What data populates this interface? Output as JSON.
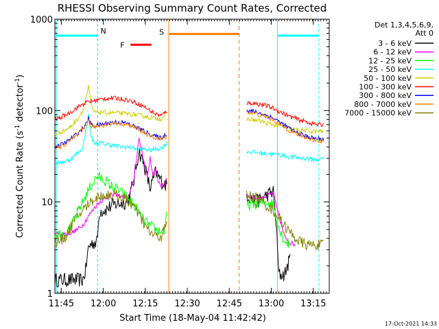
{
  "chart_data": {
    "type": "line",
    "title": "RHESSI Observing Summary Count Rates, Corrected",
    "xlabel": "Start Time (18-May-04 11:42:42)",
    "ylabel_main": "Corrected Count Rate (s",
    "ylabel_sup1": "-1",
    "ylabel_mid": " detector",
    "ylabel_sup2": "-1",
    "ylabel_end": ")",
    "footer_date": "17-Oct-2021 14:33",
    "x_unit": "minutes since 11:42:42",
    "xlim": [
      0,
      98
    ],
    "ylim": [
      1,
      1000
    ],
    "yscale": "log",
    "grid": false,
    "legend_position": "top-right",
    "legend_header": [
      "Det 1,3,4,5,6,9,",
      "Att 0"
    ],
    "x_ticks": [
      {
        "x": 2.3,
        "label": "11:45"
      },
      {
        "x": 17.3,
        "label": "12:00"
      },
      {
        "x": 32.3,
        "label": "12:15"
      },
      {
        "x": 47.3,
        "label": "12:30"
      },
      {
        "x": 62.3,
        "label": "12:45"
      },
      {
        "x": 77.3,
        "label": "13:00"
      },
      {
        "x": 92.3,
        "label": "13:15"
      }
    ],
    "y_ticks": [
      {
        "y": 1,
        "label": "1"
      },
      {
        "y": 10,
        "label": "10"
      },
      {
        "y": 100,
        "label": "100"
      },
      {
        "y": 1000,
        "label": "1000"
      }
    ],
    "markers": {
      "N_label": "N",
      "S_label": "S",
      "F_label": "F",
      "night_before": [
        0,
        15.3
      ],
      "night_after": [
        79.5,
        94.3
      ],
      "night_level": 660,
      "saa": [
        40.7,
        65.8
      ],
      "saa_level": 690,
      "flare": [
        27.0,
        34.5
      ],
      "flare_level": 525,
      "night_color": "#00ffff",
      "saa_color": "#ff8000",
      "flare_color": "#ff0000"
    },
    "series": [
      {
        "name": "3 - 6 keV",
        "color": "#000000",
        "segments": [
          {
            "x": [
              0,
              2,
              4,
              6,
              8,
              10,
              11,
              12,
              13,
              14,
              15,
              16,
              18,
              20,
              22,
              24,
              26,
              28,
              30,
              32,
              34,
              36,
              38,
              39,
              40
            ],
            "y": [
              1.4,
              1.4,
              1.4,
              1.4,
              1.4,
              1.4,
              1.8,
              3.2,
              3.5,
              3.6,
              3.6,
              8.0,
              8.2,
              9.0,
              9.5,
              9.8,
              10.0,
              16,
              36,
              25,
              14,
              21,
              17,
              16,
              15
            ]
          },
          {
            "x": [
              68.5,
              70,
              72,
              74,
              76,
              78,
              79,
              80,
              82,
              84
            ],
            "y": [
              12,
              11,
              10,
              11,
              12,
              13,
              6,
              1.6,
              1.6,
              2.4
            ]
          }
        ]
      },
      {
        "name": "6 - 12 keV",
        "color": "#ff00ff",
        "segments": [
          {
            "x": [
              0,
              2,
              4,
              6,
              8,
              10,
              12,
              14,
              16,
              18,
              20,
              22,
              24,
              26,
              28,
              30,
              31,
              32,
              33,
              34,
              35,
              36,
              37,
              38,
              39,
              40
            ],
            "y": [
              4.5,
              4.5,
              4.5,
              4.6,
              5.0,
              5.6,
              7.0,
              8.6,
              10,
              11,
              11.8,
              12,
              11.5,
              11,
              16,
              48,
              38,
              26,
              19,
              30,
              20,
              22,
              17,
              15,
              15,
              19
            ]
          },
          {
            "x": [
              68.5,
              70,
              72,
              74,
              76,
              78,
              80,
              82,
              84,
              86
            ],
            "y": [
              12,
              11.5,
              11,
              11,
              11.8,
              12.5,
              7,
              4.2,
              3.6,
              3.4
            ]
          }
        ]
      },
      {
        "name": "12 - 25 keV",
        "color": "#00ff00",
        "segments": [
          {
            "x": [
              0,
              2,
              4,
              6,
              8,
              10,
              12,
              14,
              15,
              16,
              18,
              20,
              22,
              24,
              26,
              28,
              30,
              32,
              34,
              36,
              38,
              39,
              40
            ],
            "y": [
              4.5,
              4.5,
              4.5,
              5.5,
              7.5,
              10,
              13.5,
              17,
              19,
              18.5,
              17,
              15,
              14,
              12.5,
              11,
              9.5,
              7.5,
              6.2,
              5.5,
              5.0,
              4.8,
              4.8,
              7
            ]
          },
          {
            "x": [
              68.5,
              70,
              72,
              74,
              76,
              78,
              80,
              82,
              84
            ],
            "y": [
              9,
              9.5,
              9.5,
              9.8,
              10,
              9.5,
              5.2,
              3.8,
              3.4
            ]
          }
        ]
      },
      {
        "name": "25 - 50 keV",
        "color": "#00ffff",
        "segments": [
          {
            "x": [
              0,
              2,
              4,
              6,
              8,
              10,
              11,
              12,
              13,
              14,
              15,
              16,
              18,
              20,
              22,
              24,
              26,
              28,
              30,
              32,
              34,
              36,
              38,
              40
            ],
            "y": [
              26,
              27,
              28,
              30,
              34,
              39,
              60,
              88,
              52,
              44,
              44,
              44,
              43,
              42,
              41,
              40,
              40,
              39,
              38,
              38,
              37,
              38,
              39,
              44
            ]
          },
          {
            "x": [
              68.5,
              70,
              72,
              74,
              76,
              78,
              80,
              82,
              84,
              86,
              88,
              90,
              92,
              94,
              96
            ],
            "y": [
              36,
              35,
              35,
              34,
              34,
              33,
              33,
              32,
              31,
              31,
              30,
              30,
              29,
              29,
              30
            ]
          }
        ]
      },
      {
        "name": "50 - 100 keV",
        "color": "#cccc00",
        "segments": [
          {
            "x": [
              0,
              2,
              4,
              6,
              8,
              10,
              11,
              12,
              13,
              14,
              15,
              16,
              18,
              20,
              22,
              24,
              26,
              28,
              30,
              32,
              34,
              36,
              38,
              40
            ],
            "y": [
              55,
              58,
              62,
              68,
              80,
              100,
              135,
              180,
              115,
              96,
              96,
              96,
              95,
              95,
              94,
              93,
              92,
              91,
              89,
              87,
              84,
              83,
              81,
              92
            ]
          },
          {
            "x": [
              68.5,
              70,
              72,
              74,
              76,
              78,
              80,
              82,
              84,
              86,
              88,
              90,
              92,
              94,
              96
            ],
            "y": [
              80,
              80,
              78,
              76,
              72,
              70,
              68,
              66,
              63,
              62,
              61,
              60,
              59,
              59,
              59
            ]
          }
        ]
      },
      {
        "name": "100 - 300 keV",
        "color": "#ff0000",
        "segments": [
          {
            "x": [
              0,
              2,
              4,
              6,
              8,
              10,
              12,
              14,
              16,
              18,
              20,
              22,
              24,
              26,
              28,
              30,
              32,
              34,
              36,
              38,
              40
            ],
            "y": [
              80,
              84,
              90,
              98,
              108,
              118,
              125,
              128,
              132,
              135,
              137,
              136,
              134,
              130,
              125,
              118,
              110,
              100,
              92,
              88,
              98
            ]
          },
          {
            "x": [
              68.5,
              70,
              72,
              74,
              76,
              78,
              80,
              82,
              84,
              86,
              88,
              90,
              92,
              94,
              96
            ],
            "y": [
              120,
              121,
              119,
              116,
              112,
              106,
              98,
              92,
              86,
              82,
              78,
              75,
              72,
              70,
              70
            ]
          }
        ]
      },
      {
        "name": "300 - 800 keV",
        "color": "#0000ff",
        "segments": [
          {
            "x": [
              0,
              2,
              4,
              6,
              8,
              10,
              11,
              12,
              13,
              14,
              16,
              18,
              20,
              22,
              24,
              26,
              28,
              30,
              32,
              34,
              36,
              38,
              40
            ],
            "y": [
              40,
              42,
              45,
              50,
              56,
              64,
              70,
              82,
              70,
              68,
              70,
              72,
              74,
              75,
              74,
              72,
              68,
              64,
              59,
              55,
              52,
              50,
              56
            ]
          },
          {
            "x": [
              68.5,
              70,
              72,
              74,
              76,
              78,
              80,
              82,
              84,
              86,
              88,
              90,
              92,
              94,
              96
            ],
            "y": [
              100,
              99,
              96,
              92,
              88,
              83,
              76,
              69,
              63,
              58,
              55,
              52,
              50,
              49,
              49
            ]
          }
        ]
      },
      {
        "name": "800 - 7000 keV",
        "color": "#ff8000",
        "segments": [
          {
            "x": [
              0,
              2,
              4,
              6,
              8,
              10,
              11,
              12,
              13,
              14,
              16,
              18,
              20,
              22,
              24,
              26,
              28,
              30,
              32,
              34,
              36,
              38,
              40
            ],
            "y": [
              38,
              40,
              43,
              48,
              54,
              62,
              68,
              80,
              68,
              66,
              68,
              70,
              72,
              73,
              72,
              70,
              66,
              62,
              57,
              53,
              50,
              48,
              53
            ]
          },
          {
            "x": [
              68.5,
              70,
              72,
              74,
              76,
              78,
              80,
              82,
              84,
              86,
              88,
              90,
              92,
              94,
              96
            ],
            "y": [
              96,
              95,
              92,
              88,
              84,
              79,
              72,
              66,
              60,
              56,
              53,
              50,
              48,
              47,
              46
            ]
          }
        ]
      },
      {
        "name": "7000 - 15000 keV",
        "color": "#808000",
        "segments": [
          {
            "x": [
              0,
              2,
              4,
              6,
              8,
              10,
              12,
              14,
              16,
              18,
              20,
              22,
              24,
              26,
              28,
              30,
              32,
              34,
              36,
              38,
              40
            ],
            "y": [
              3.6,
              3.7,
              4.3,
              5.5,
              6.8,
              8.2,
              9.5,
              10.8,
              11.5,
              11.8,
              12,
              11.8,
              11.2,
              10.3,
              9.0,
              7.2,
              5.6,
              4.6,
              4.2,
              4.2,
              5.8
            ]
          },
          {
            "x": [
              68.5,
              70,
              72,
              74,
              76,
              78,
              80,
              82,
              84,
              86,
              88,
              90,
              92,
              94,
              96
            ],
            "y": [
              12,
              11.5,
              11,
              10,
              9,
              8,
              6.8,
              5.6,
              4.6,
              4.0,
              3.6,
              3.4,
              3.4,
              3.4,
              3.4
            ]
          }
        ]
      }
    ]
  }
}
